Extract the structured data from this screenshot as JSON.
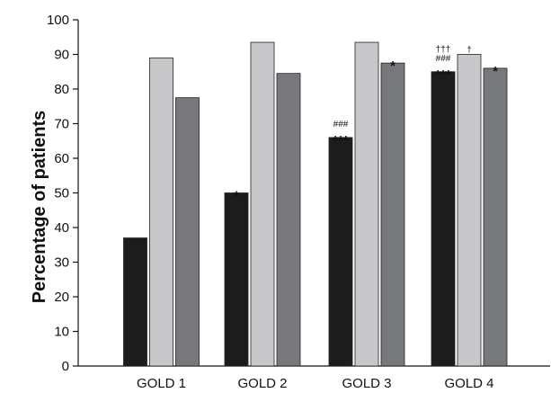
{
  "chart_data": {
    "type": "bar",
    "title": "",
    "xlabel": "",
    "ylabel": "Percentage of patients",
    "ylim": [
      0,
      100
    ],
    "yticks": [
      0,
      10,
      20,
      30,
      40,
      50,
      60,
      70,
      80,
      90,
      100
    ],
    "grid": false,
    "legend": "none",
    "categories": [
      "GOLD 1",
      "GOLD 2",
      "GOLD 3",
      "GOLD 4"
    ],
    "series": [
      {
        "color": "#1c1c1c",
        "values": [
          37,
          50,
          66,
          85
        ]
      },
      {
        "color": "#c8c8ca",
        "values": [
          89,
          93.5,
          93.5,
          90
        ]
      },
      {
        "color": "#77787c",
        "values": [
          77.5,
          84.5,
          87.5,
          86
        ]
      }
    ],
    "annotations": [
      {
        "category": 1,
        "series": 0,
        "lines": [
          "*"
        ]
      },
      {
        "category": 2,
        "series": 0,
        "lines": [
          "###",
          "***"
        ]
      },
      {
        "category": 2,
        "series": 2,
        "lines": [
          "*"
        ]
      },
      {
        "category": 3,
        "series": 0,
        "lines": [
          "†††",
          "###",
          "***"
        ]
      },
      {
        "category": 3,
        "series": 1,
        "lines": [
          "†"
        ]
      },
      {
        "category": 3,
        "series": 2,
        "lines": [
          "*"
        ]
      }
    ]
  }
}
